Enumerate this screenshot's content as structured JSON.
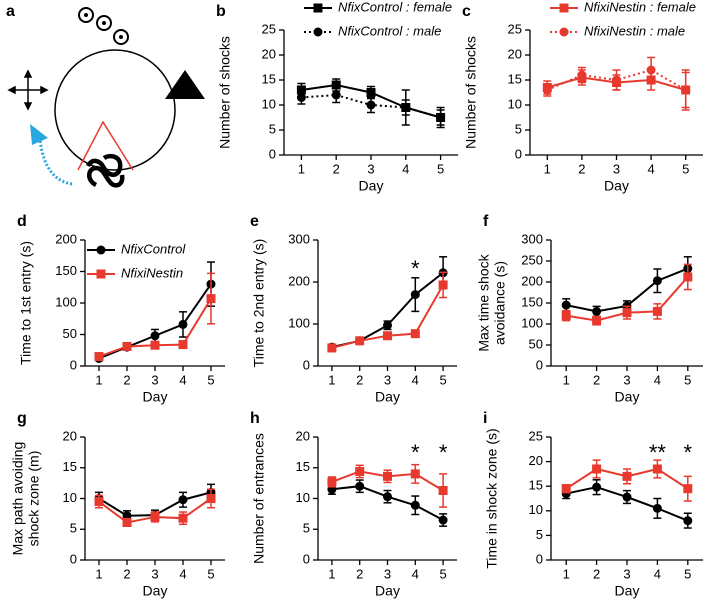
{
  "diagram": {
    "panel_label": "a"
  },
  "chart_data": [
    {
      "type": "line",
      "panel_label": "b",
      "xlabel": "Day",
      "ylabel": [
        "Number of shocks"
      ],
      "x": [
        1,
        2,
        3,
        4,
        5
      ],
      "xlim": [
        0.5,
        5.5
      ],
      "xticks": [
        1,
        2,
        3,
        4,
        5
      ],
      "ylim": [
        0,
        25
      ],
      "yticks": [
        0,
        5,
        10,
        15,
        20,
        25
      ],
      "legend": "top",
      "series": [
        {
          "name": "NfixControl : female",
          "color": "#000000",
          "marker": "square",
          "dash": "solid",
          "values": [
            13,
            14,
            12.5,
            9.5,
            7.5
          ],
          "errors": [
            1.3,
            1.2,
            1.2,
            1.5,
            1.5
          ]
        },
        {
          "name": "NfixControl : male",
          "color": "#000000",
          "marker": "circle",
          "dash": "dotted",
          "values": [
            11.5,
            12,
            10,
            9.5,
            7.5
          ],
          "errors": [
            1.3,
            1.5,
            1.5,
            3.5,
            2
          ]
        }
      ]
    },
    {
      "type": "line",
      "panel_label": "c",
      "xlabel": "Day",
      "ylabel": [
        "Number of shocks"
      ],
      "x": [
        1,
        2,
        3,
        4,
        5
      ],
      "xlim": [
        0.5,
        5.5
      ],
      "xticks": [
        1,
        2,
        3,
        4,
        5
      ],
      "ylim": [
        0,
        25
      ],
      "yticks": [
        0,
        5,
        10,
        15,
        20,
        25
      ],
      "legend": "top",
      "series": [
        {
          "name": "NfixiNestin : female",
          "color": "#e8392e",
          "marker": "square",
          "dash": "solid",
          "values": [
            13.5,
            15.5,
            14.5,
            15,
            13
          ],
          "errors": [
            1.3,
            1.5,
            1.5,
            2,
            3.5
          ]
        },
        {
          "name": "NfixiNestin : male",
          "color": "#e8392e",
          "marker": "circle",
          "dash": "dotted",
          "values": [
            13,
            16,
            15,
            17,
            13
          ],
          "errors": [
            1.2,
            1.5,
            2,
            2.5,
            4
          ]
        }
      ]
    },
    {
      "type": "line",
      "panel_label": "d",
      "xlabel": "Day",
      "ylabel": [
        "Time to 1st entry (s)"
      ],
      "x": [
        1,
        2,
        3,
        4,
        5
      ],
      "xlim": [
        0.5,
        5.5
      ],
      "xticks": [
        1,
        2,
        3,
        4,
        5
      ],
      "ylim": [
        0,
        200
      ],
      "yticks": [
        0,
        50,
        100,
        150,
        200
      ],
      "legend": "upper left",
      "series": [
        {
          "name": "NfixControl",
          "color": "#000000",
          "marker": "circle",
          "dash": "solid",
          "values": [
            12,
            30,
            48,
            66,
            130
          ],
          "errors": [
            3,
            3,
            10,
            20,
            35
          ]
        },
        {
          "name": "NfixiNestin",
          "color": "#e8392e",
          "marker": "square",
          "dash": "solid",
          "values": [
            15,
            31,
            33,
            34,
            107
          ],
          "errors": [
            3,
            3,
            4,
            4,
            40
          ]
        }
      ]
    },
    {
      "type": "line",
      "panel_label": "e",
      "xlabel": "Day",
      "ylabel": [
        "Time to 2nd entry (s)"
      ],
      "x": [
        1,
        2,
        3,
        4,
        5
      ],
      "xlim": [
        0.5,
        5.5
      ],
      "xticks": [
        1,
        2,
        3,
        4,
        5
      ],
      "ylim": [
        0,
        300
      ],
      "yticks": [
        0,
        100,
        200,
        300
      ],
      "annotations": [
        {
          "text": "*",
          "x": 4,
          "y": 240
        }
      ],
      "series": [
        {
          "name": "NfixControl",
          "color": "#000000",
          "marker": "circle",
          "dash": "solid",
          "values": [
            45,
            60,
            97,
            170,
            222
          ],
          "errors": [
            5,
            5,
            10,
            40,
            38
          ]
        },
        {
          "name": "NfixiNestin",
          "color": "#e8392e",
          "marker": "square",
          "dash": "solid",
          "values": [
            43,
            60,
            72,
            77,
            193
          ],
          "errors": [
            4,
            4,
            6,
            8,
            30
          ]
        }
      ]
    },
    {
      "type": "line",
      "panel_label": "f",
      "xlabel": "Day",
      "ylabel": [
        "Max time shock",
        "avoidance (s)"
      ],
      "x": [
        1,
        2,
        3,
        4,
        5
      ],
      "xlim": [
        0.5,
        5.5
      ],
      "xticks": [
        1,
        2,
        3,
        4,
        5
      ],
      "ylim": [
        0,
        300
      ],
      "yticks": [
        0,
        50,
        100,
        150,
        200,
        250,
        300
      ],
      "series": [
        {
          "name": "NfixControl",
          "color": "#000000",
          "marker": "circle",
          "dash": "solid",
          "values": [
            145,
            130,
            143,
            203,
            232
          ],
          "errors": [
            15,
            12,
            12,
            28,
            28
          ]
        },
        {
          "name": "NfixiNestin",
          "color": "#e8392e",
          "marker": "square",
          "dash": "solid",
          "values": [
            120,
            108,
            127,
            130,
            212
          ],
          "errors": [
            12,
            10,
            15,
            18,
            30
          ]
        }
      ]
    },
    {
      "type": "line",
      "panel_label": "g",
      "xlabel": "Day",
      "ylabel": [
        "Max path avoiding",
        "shock zone (m)"
      ],
      "x": [
        1,
        2,
        3,
        4,
        5
      ],
      "xlim": [
        0.5,
        5.5
      ],
      "xticks": [
        1,
        2,
        3,
        4,
        5
      ],
      "ylim": [
        0,
        20
      ],
      "yticks": [
        0,
        5,
        10,
        15,
        20
      ],
      "series": [
        {
          "name": "NfixControl",
          "color": "#000000",
          "marker": "circle",
          "dash": "solid",
          "values": [
            10,
            7.2,
            7.3,
            9.8,
            11
          ],
          "errors": [
            1,
            0.8,
            0.8,
            1.2,
            1.3
          ]
        },
        {
          "name": "NfixiNestin",
          "color": "#e8392e",
          "marker": "square",
          "dash": "solid",
          "values": [
            9.5,
            6.1,
            7,
            6.8,
            10
          ],
          "errors": [
            1,
            0.6,
            0.8,
            1,
            1.5
          ]
        }
      ]
    },
    {
      "type": "line",
      "panel_label": "h",
      "xlabel": "Day",
      "ylabel": [
        "Number of entrances"
      ],
      "x": [
        1,
        2,
        3,
        4,
        5
      ],
      "xlim": [
        0.5,
        5.5
      ],
      "xticks": [
        1,
        2,
        3,
        4,
        5
      ],
      "ylim": [
        0,
        20
      ],
      "yticks": [
        0,
        5,
        10,
        15,
        20
      ],
      "annotations": [
        {
          "text": "*",
          "x": 4,
          "y": 18
        },
        {
          "text": "*",
          "x": 5,
          "y": 18
        }
      ],
      "series": [
        {
          "name": "NfixControl",
          "color": "#000000",
          "marker": "circle",
          "dash": "solid",
          "values": [
            11.5,
            12,
            10.3,
            8.9,
            6.5
          ],
          "errors": [
            0.8,
            1,
            1,
            1.5,
            1
          ]
        },
        {
          "name": "NfixiNestin",
          "color": "#e8392e",
          "marker": "square",
          "dash": "solid",
          "values": [
            12.7,
            14.4,
            13.6,
            14,
            11.3
          ],
          "errors": [
            0.8,
            1,
            1,
            1.5,
            2.7
          ]
        }
      ]
    },
    {
      "type": "line",
      "panel_label": "i",
      "xlabel": "Day",
      "ylabel": [
        "Time in shock zone (s)"
      ],
      "x": [
        1,
        2,
        3,
        4,
        5
      ],
      "xlim": [
        0.5,
        5.5
      ],
      "xticks": [
        1,
        2,
        3,
        4,
        5
      ],
      "ylim": [
        0,
        25
      ],
      "yticks": [
        0,
        5,
        10,
        15,
        20,
        25
      ],
      "annotations": [
        {
          "text": "**",
          "x": 4,
          "y": 22.5
        },
        {
          "text": "*",
          "x": 5,
          "y": 22.5
        }
      ],
      "series": [
        {
          "name": "NfixControl",
          "color": "#000000",
          "marker": "circle",
          "dash": "solid",
          "values": [
            13.5,
            14.8,
            12.8,
            10.5,
            8
          ],
          "errors": [
            1,
            1.5,
            1.3,
            2,
            1.5
          ]
        },
        {
          "name": "NfixiNestin",
          "color": "#e8392e",
          "marker": "square",
          "dash": "solid",
          "values": [
            14.5,
            18.5,
            17,
            18.5,
            14.5
          ],
          "errors": [
            0.8,
            1.8,
            1.5,
            1.8,
            2.5
          ]
        }
      ]
    }
  ]
}
